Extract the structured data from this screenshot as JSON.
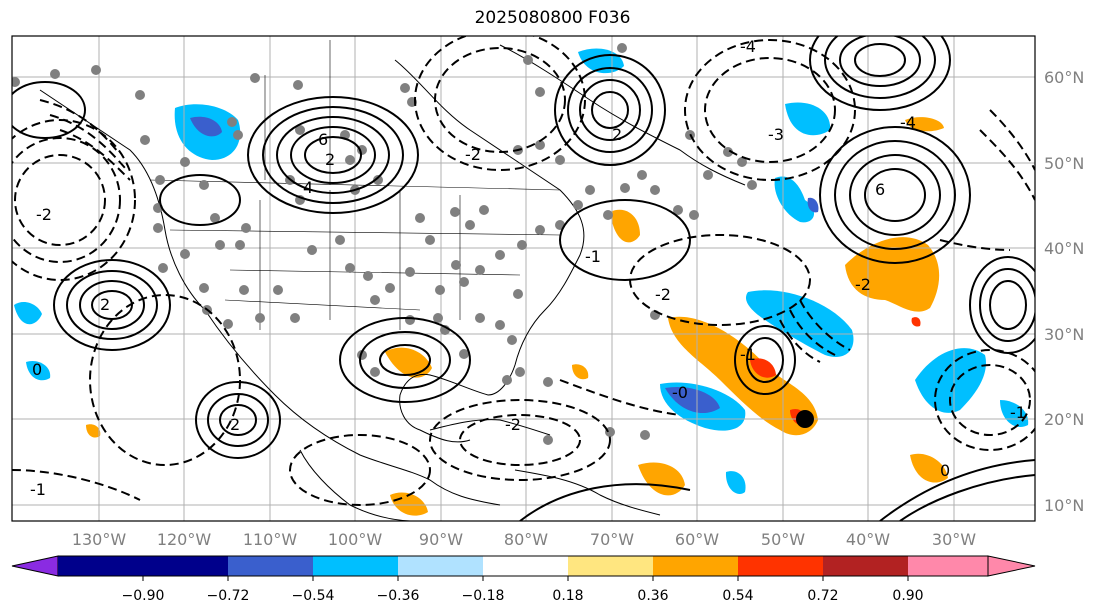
{
  "title": "2025080800 F036",
  "lat_labels": [
    "60°N",
    "50°N",
    "40°N",
    "30°N",
    "20°N",
    "10°N"
  ],
  "lon_labels": [
    "130°W",
    "120°W",
    "110°W",
    "100°W",
    "90°W",
    "80°W",
    "70°W",
    "60°W",
    "50°W",
    "40°W",
    "30°W"
  ],
  "colorbar": {
    "ticks": [
      "−0.90",
      "−0.72",
      "−0.54",
      "−0.36",
      "−0.18",
      "0.18",
      "0.36",
      "0.54",
      "0.72",
      "0.90"
    ],
    "colors": [
      "#8a2be2",
      "#00008b",
      "#3a5fcd",
      "#00bfff",
      "#b0e2ff",
      "#ffffff",
      "#ffe680",
      "#ffa500",
      "#ff3300",
      "#b22222",
      "#ff88aa"
    ]
  },
  "contour_labels": [
    "2",
    "6",
    "4",
    "-2",
    "-3",
    "2",
    "-4",
    "-2",
    "6",
    "-4",
    "2",
    "-1",
    "-2",
    "-2",
    "-1",
    "-0",
    "2",
    "0",
    "-2",
    "-1",
    "0",
    "-1"
  ],
  "fill_colors": {
    "orange": "#ffa500",
    "red": "#ff3300",
    "light_blue": "#00bfff",
    "mid_blue": "#3a5fcd"
  },
  "station_color": "#808080"
}
